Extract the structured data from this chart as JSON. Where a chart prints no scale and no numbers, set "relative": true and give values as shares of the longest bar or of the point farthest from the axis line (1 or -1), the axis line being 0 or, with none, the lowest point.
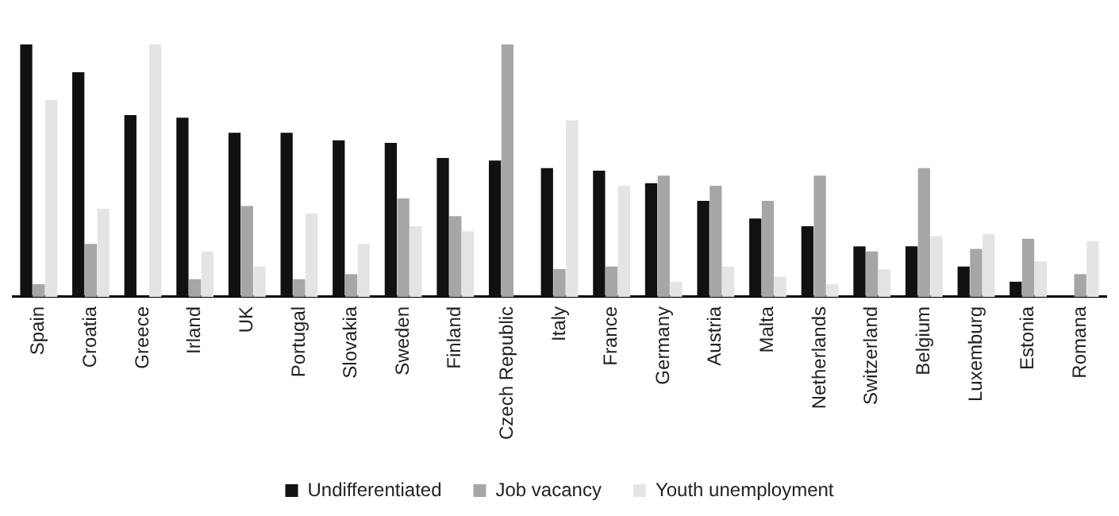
{
  "chart_data": {
    "type": "bar",
    "relative": true,
    "categories": [
      "Spain",
      "Croatia",
      "Greece",
      "Irland",
      "UK",
      "Portugal",
      "Slovakia",
      "Sweden",
      "Finland",
      "Czech Republic",
      "Italy",
      "France",
      "Germany",
      "Austria",
      "Malta",
      "Netherlands",
      "Switzerland",
      "Belgium",
      "Luxemburg",
      "Estonia",
      "Romana"
    ],
    "series": [
      {
        "name": "Undifferentiated",
        "color": "#111111",
        "values": [
          1.0,
          0.89,
          0.72,
          0.71,
          0.65,
          0.65,
          0.62,
          0.61,
          0.55,
          0.54,
          0.51,
          0.5,
          0.45,
          0.38,
          0.31,
          0.28,
          0.2,
          0.2,
          0.12,
          0.06,
          null
        ]
      },
      {
        "name": "Job vacancy",
        "color": "#a6a6a6",
        "values": [
          0.05,
          0.21,
          null,
          0.07,
          0.36,
          0.07,
          0.09,
          0.39,
          0.32,
          1.0,
          0.11,
          0.12,
          0.48,
          0.44,
          0.38,
          0.48,
          0.18,
          0.51,
          0.19,
          0.23,
          0.09
        ]
      },
      {
        "name": "Youth unemployment",
        "color": "#e6e3e3",
        "values": [
          0.78,
          0.35,
          1.0,
          0.18,
          0.12,
          0.33,
          0.21,
          0.28,
          0.26,
          null,
          0.7,
          0.44,
          0.06,
          0.12,
          0.08,
          0.05,
          0.11,
          0.24,
          0.25,
          0.14,
          0.22
        ]
      }
    ],
    "grid": false,
    "legend": "bottom"
  }
}
